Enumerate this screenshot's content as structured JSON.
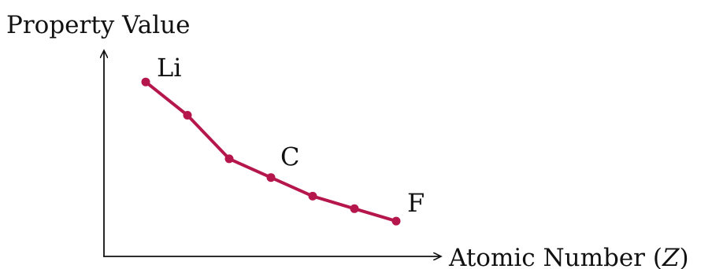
{
  "chart_data": {
    "type": "line",
    "xlabel": "Atomic Number (",
    "xlabel_var": "Z",
    "xlabel_close": ")",
    "ylabel": "Property Value",
    "x": [
      3,
      4,
      5,
      6,
      7,
      8,
      9
    ],
    "series": [
      {
        "values": [
          0.84,
          0.68,
          0.47,
          0.38,
          0.29,
          0.23,
          0.17
        ],
        "color": "#b5174c"
      }
    ],
    "point_labels": [
      {
        "index": 0,
        "text": "Li"
      },
      {
        "index": 3,
        "text": "C"
      },
      {
        "index": 6,
        "text": "F"
      }
    ],
    "xlim": [
      2,
      10
    ],
    "ylim": [
      0,
      1
    ],
    "grid": false,
    "axis_color": "#111111",
    "marker": "circle"
  }
}
